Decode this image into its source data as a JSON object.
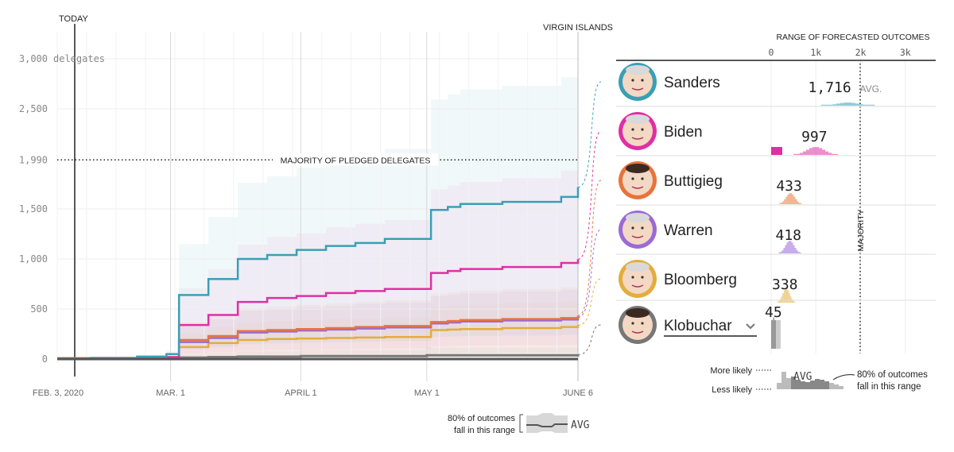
{
  "chart_data": {
    "type": "line",
    "today_label": "TODAY",
    "end_label": "VIRGIN ISLANDS",
    "y_ticks": [
      {
        "value": 3000,
        "label": "3,000",
        "suffix": "delegates"
      },
      {
        "value": 2500,
        "label": "2,500"
      },
      {
        "value": 1990,
        "label": "1,990"
      },
      {
        "value": 1500,
        "label": "1,500"
      },
      {
        "value": 1000,
        "label": "1,000"
      },
      {
        "value": 500,
        "label": "500"
      },
      {
        "value": 0,
        "label": "0"
      }
    ],
    "ylim": [
      0,
      3200
    ],
    "x_domain": [
      "2020-02-03",
      "2020-06-06"
    ],
    "x_ticks": [
      {
        "date": "2020-02-03",
        "label": "FEB. 3, 2020"
      },
      {
        "date": "2020-03-01",
        "label": "MAR. 1"
      },
      {
        "date": "2020-04-01",
        "label": "APRIL 1"
      },
      {
        "date": "2020-05-01",
        "label": "MAY 1"
      },
      {
        "date": "2020-06-06",
        "label": "JUNE 6"
      }
    ],
    "majority": {
      "value": 1990,
      "label": "MAJORITY OF PLEDGED DELEGATES"
    },
    "series": [
      {
        "name": "Sanders",
        "color": "#3a9fb5",
        "avg": 1716,
        "avg_label": "1,716",
        "points": [
          [
            "2020-02-03",
            5
          ],
          [
            "2020-02-11",
            10
          ],
          [
            "2020-02-22",
            25
          ],
          [
            "2020-02-29",
            50
          ],
          [
            "2020-03-03",
            640
          ],
          [
            "2020-03-10",
            800
          ],
          [
            "2020-03-17",
            1000
          ],
          [
            "2020-03-24",
            1040
          ],
          [
            "2020-03-31",
            1090
          ],
          [
            "2020-04-07",
            1130
          ],
          [
            "2020-04-14",
            1160
          ],
          [
            "2020-04-21",
            1200
          ],
          [
            "2020-05-02",
            1490
          ],
          [
            "2020-05-06",
            1520
          ],
          [
            "2020-05-09",
            1550
          ],
          [
            "2020-05-19",
            1570
          ],
          [
            "2020-06-02",
            1620
          ],
          [
            "2020-06-06",
            1716
          ]
        ]
      },
      {
        "name": "Biden",
        "color": "#e02fa4",
        "avg": 997,
        "avg_label": "997",
        "points": [
          [
            "2020-02-03",
            0
          ],
          [
            "2020-02-22",
            5
          ],
          [
            "2020-02-29",
            20
          ],
          [
            "2020-03-03",
            340
          ],
          [
            "2020-03-10",
            440
          ],
          [
            "2020-03-17",
            570
          ],
          [
            "2020-03-24",
            610
          ],
          [
            "2020-03-31",
            630
          ],
          [
            "2020-04-07",
            660
          ],
          [
            "2020-04-14",
            680
          ],
          [
            "2020-04-21",
            700
          ],
          [
            "2020-05-02",
            860
          ],
          [
            "2020-05-06",
            880
          ],
          [
            "2020-05-09",
            900
          ],
          [
            "2020-05-19",
            920
          ],
          [
            "2020-06-02",
            960
          ],
          [
            "2020-06-06",
            997
          ]
        ]
      },
      {
        "name": "Buttigieg",
        "color": "#e8743b",
        "avg": 433,
        "avg_label": "433",
        "points": [
          [
            "2020-02-03",
            10
          ],
          [
            "2020-02-11",
            12
          ],
          [
            "2020-02-22",
            15
          ],
          [
            "2020-02-29",
            20
          ],
          [
            "2020-03-03",
            190
          ],
          [
            "2020-03-10",
            230
          ],
          [
            "2020-03-17",
            280
          ],
          [
            "2020-03-24",
            290
          ],
          [
            "2020-03-31",
            300
          ],
          [
            "2020-04-07",
            310
          ],
          [
            "2020-04-14",
            320
          ],
          [
            "2020-04-21",
            330
          ],
          [
            "2020-05-02",
            370
          ],
          [
            "2020-05-06",
            380
          ],
          [
            "2020-05-09",
            390
          ],
          [
            "2020-05-19",
            400
          ],
          [
            "2020-06-02",
            410
          ],
          [
            "2020-06-06",
            433
          ]
        ]
      },
      {
        "name": "Warren",
        "color": "#9b6ad6",
        "avg": 418,
        "avg_label": "418",
        "points": [
          [
            "2020-02-03",
            8
          ],
          [
            "2020-02-11",
            10
          ],
          [
            "2020-02-22",
            12
          ],
          [
            "2020-02-29",
            15
          ],
          [
            "2020-03-03",
            170
          ],
          [
            "2020-03-10",
            210
          ],
          [
            "2020-03-17",
            265
          ],
          [
            "2020-03-24",
            275
          ],
          [
            "2020-03-31",
            285
          ],
          [
            "2020-04-07",
            295
          ],
          [
            "2020-04-14",
            305
          ],
          [
            "2020-04-21",
            315
          ],
          [
            "2020-05-02",
            355
          ],
          [
            "2020-05-06",
            365
          ],
          [
            "2020-05-09",
            375
          ],
          [
            "2020-05-19",
            385
          ],
          [
            "2020-06-02",
            395
          ],
          [
            "2020-06-06",
            418
          ]
        ]
      },
      {
        "name": "Bloomberg",
        "color": "#e3ad3c",
        "avg": 338,
        "avg_label": "338",
        "points": [
          [
            "2020-02-03",
            0
          ],
          [
            "2020-02-29",
            0
          ],
          [
            "2020-03-03",
            120
          ],
          [
            "2020-03-10",
            160
          ],
          [
            "2020-03-17",
            190
          ],
          [
            "2020-03-24",
            200
          ],
          [
            "2020-03-31",
            205
          ],
          [
            "2020-04-07",
            210
          ],
          [
            "2020-04-14",
            215
          ],
          [
            "2020-04-21",
            220
          ],
          [
            "2020-05-02",
            290
          ],
          [
            "2020-05-06",
            295
          ],
          [
            "2020-05-09",
            300
          ],
          [
            "2020-05-19",
            310
          ],
          [
            "2020-06-02",
            320
          ],
          [
            "2020-06-06",
            338
          ]
        ]
      },
      {
        "name": "Klobuchar",
        "color": "#777777",
        "avg": 45,
        "avg_label": "45",
        "points": [
          [
            "2020-02-03",
            2
          ],
          [
            "2020-02-29",
            5
          ],
          [
            "2020-03-03",
            15
          ],
          [
            "2020-03-10",
            20
          ],
          [
            "2020-03-17",
            25
          ],
          [
            "2020-04-01",
            30
          ],
          [
            "2020-05-01",
            38
          ],
          [
            "2020-06-06",
            45
          ]
        ]
      }
    ],
    "distribution": {
      "title": "RANGE OF FORECASTED OUTCOMES",
      "ticks": [
        {
          "value": 0,
          "label": "0"
        },
        {
          "value": 1000,
          "label": "1k"
        },
        {
          "value": 2000,
          "label": "2k"
        },
        {
          "value": 3000,
          "label": "3k"
        }
      ],
      "majority_label": "MAJORITY",
      "avg_suffix": "AVG."
    }
  },
  "candidates": [
    {
      "name": "Sanders",
      "color": "#3a9fb5"
    },
    {
      "name": "Biden",
      "color": "#e02fa4"
    },
    {
      "name": "Buttigieg",
      "color": "#e8743b"
    },
    {
      "name": "Warren",
      "color": "#9b6ad6"
    },
    {
      "name": "Bloomberg",
      "color": "#e3ad3c"
    },
    {
      "name": "Klobuchar",
      "color": "#777777",
      "has_dropdown": true
    }
  ],
  "legend": {
    "more_likely": "More likely",
    "less_likely": "Less likely",
    "avg": "AVG",
    "range_note_line1": "80% of outcomes",
    "range_note_line2": "fall in this range",
    "bottom_note_line1": "80% of outcomes",
    "bottom_note_line2": "fall in this range",
    "bottom_avg": "AVG"
  }
}
